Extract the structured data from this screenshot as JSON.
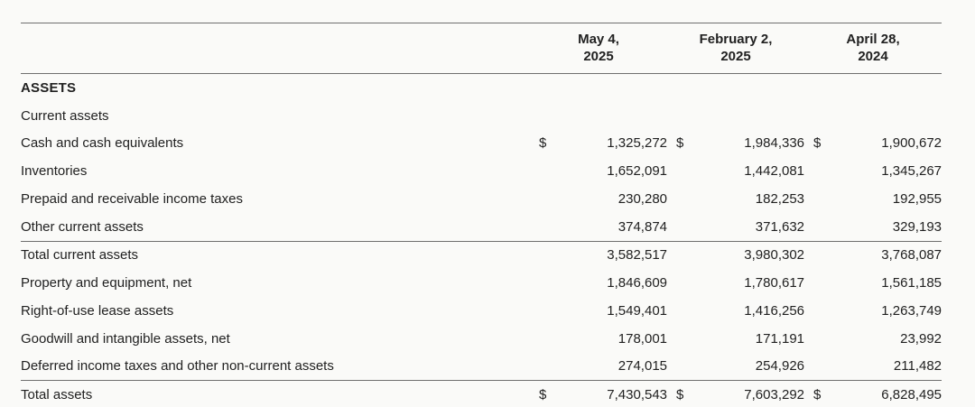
{
  "document": {
    "kind": "balance-sheet-assets-section"
  },
  "colors": {
    "background": "#fafaf8",
    "text": "#212121",
    "rule": "#6f6f6f"
  },
  "table": {
    "currency_symbol": "$",
    "columns": [
      {
        "label": "May 4,\n2025"
      },
      {
        "label": "February 2,\n2025"
      },
      {
        "label": "April 28,\n2024"
      }
    ],
    "rows": [
      {
        "label": "ASSETS",
        "bold": true,
        "dollar": false,
        "rule_above": false,
        "values": [
          "",
          "",
          ""
        ]
      },
      {
        "label": "Current assets",
        "bold": false,
        "dollar": false,
        "rule_above": false,
        "values": [
          "",
          "",
          ""
        ]
      },
      {
        "label": "Cash and cash equivalents",
        "bold": false,
        "dollar": true,
        "rule_above": false,
        "values": [
          "1,325,272",
          "1,984,336",
          "1,900,672"
        ]
      },
      {
        "label": "Inventories",
        "bold": false,
        "dollar": false,
        "rule_above": false,
        "values": [
          "1,652,091",
          "1,442,081",
          "1,345,267"
        ]
      },
      {
        "label": "Prepaid and receivable income taxes",
        "bold": false,
        "dollar": false,
        "rule_above": false,
        "values": [
          "230,280",
          "182,253",
          "192,955"
        ]
      },
      {
        "label": "Other current assets",
        "bold": false,
        "dollar": false,
        "rule_above": false,
        "values": [
          "374,874",
          "371,632",
          "329,193"
        ]
      },
      {
        "label": "Total current assets",
        "bold": false,
        "dollar": false,
        "rule_above": true,
        "values": [
          "3,582,517",
          "3,980,302",
          "3,768,087"
        ]
      },
      {
        "label": "Property and equipment, net",
        "bold": false,
        "dollar": false,
        "rule_above": false,
        "values": [
          "1,846,609",
          "1,780,617",
          "1,561,185"
        ]
      },
      {
        "label": "Right-of-use lease assets",
        "bold": false,
        "dollar": false,
        "rule_above": false,
        "values": [
          "1,549,401",
          "1,416,256",
          "1,263,749"
        ]
      },
      {
        "label": "Goodwill and intangible assets, net",
        "bold": false,
        "dollar": false,
        "rule_above": false,
        "values": [
          "178,001",
          "171,191",
          "23,992"
        ]
      },
      {
        "label": "Deferred income taxes and other non-current assets",
        "bold": false,
        "dollar": false,
        "rule_above": false,
        "values": [
          "274,015",
          "254,926",
          "211,482"
        ]
      },
      {
        "label": "Total assets",
        "bold": false,
        "dollar": true,
        "rule_above": true,
        "values": [
          "7,430,543",
          "7,603,292",
          "6,828,495"
        ]
      }
    ]
  }
}
